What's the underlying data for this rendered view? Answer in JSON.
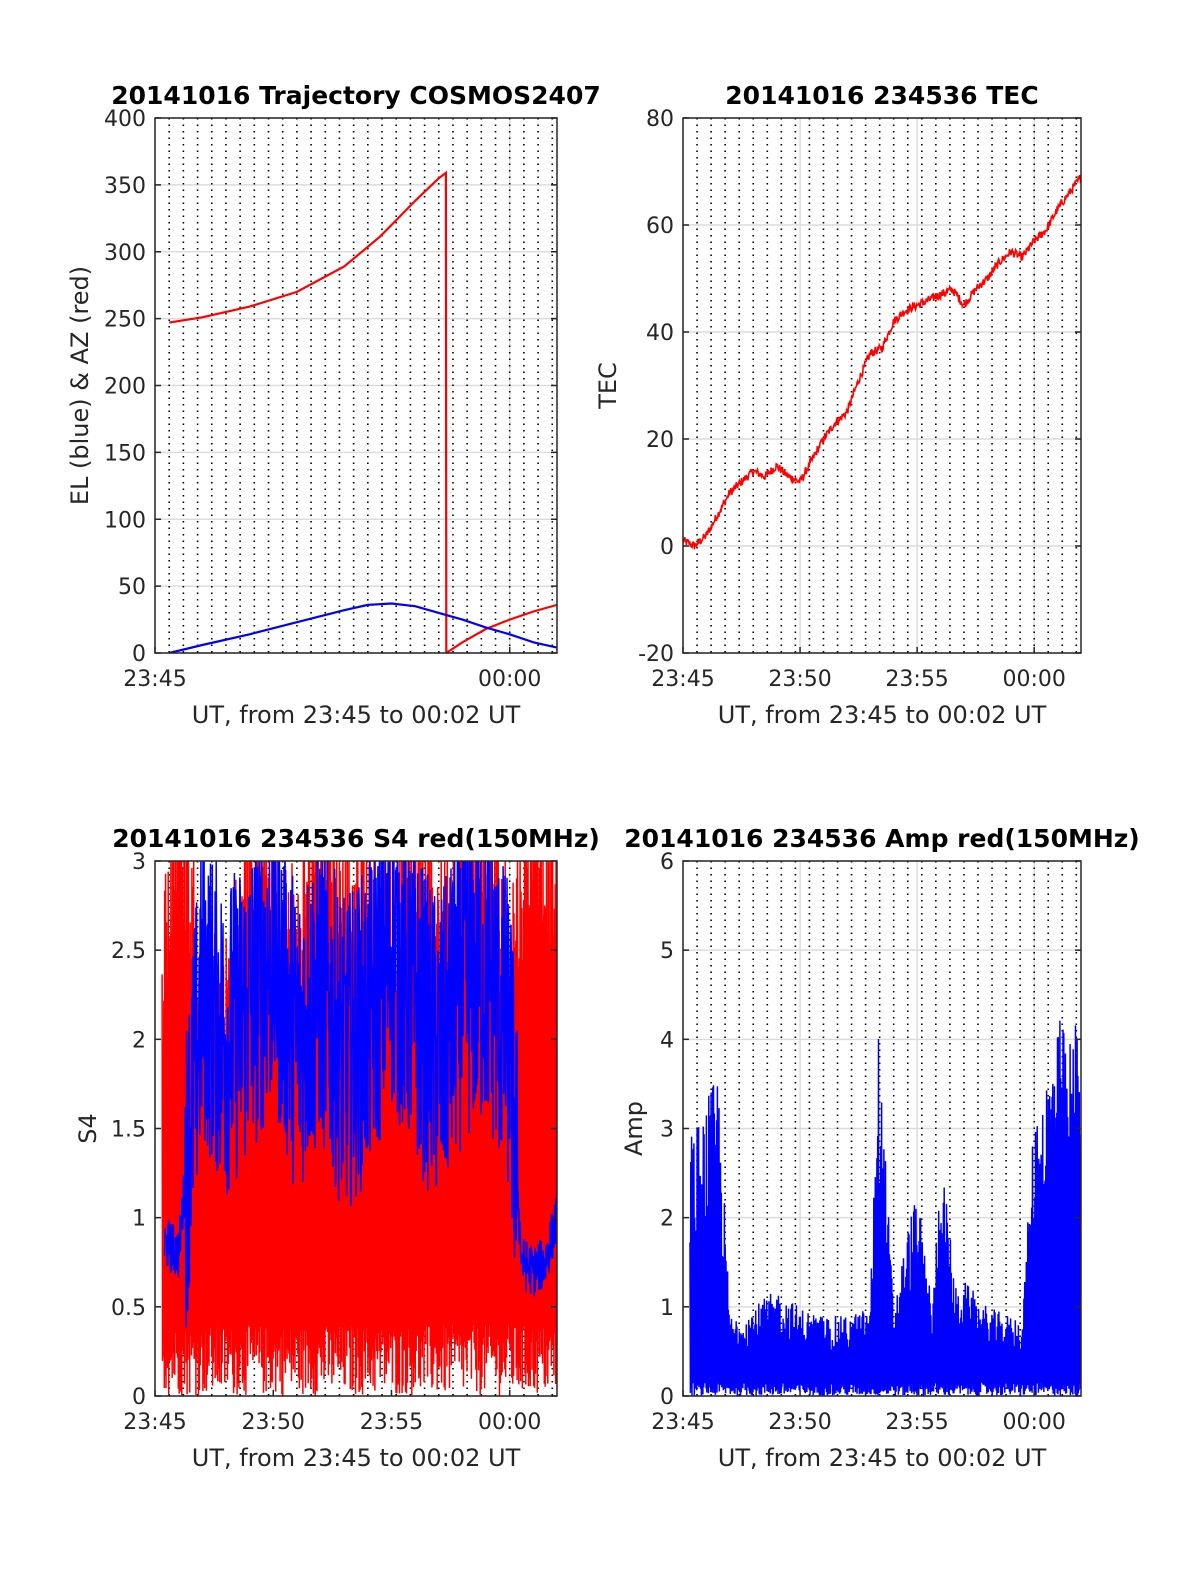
{
  "colors": {
    "az": "#ff0000",
    "el": "#0000ff",
    "tec": "#ff0000",
    "s4_red": "#ff0000",
    "s4_blue": "#0000ff",
    "amp": "#0000ff",
    "grid_solid": "#dcdcdc",
    "grid_dotted": "#000000"
  },
  "chart_data": [
    {
      "type": "line",
      "title": "20141016 Trajectory COSMOS2407",
      "xlabel": "UT, from 23:45 to 00:02 UT",
      "ylabel": "EL (blue) & AZ (red)",
      "xlim": [
        "23:45",
        "00:02"
      ],
      "xtick_labels": [
        "23:45",
        "00:00"
      ],
      "ylim": [
        0,
        400
      ],
      "yticks": [
        0,
        50,
        100,
        150,
        200,
        250,
        300,
        350,
        400
      ],
      "grid": "dotted vertical lines about every 0.6 minutes",
      "series": [
        {
          "name": "AZ",
          "x": [
            "23:45:36",
            "23:47:00",
            "23:49:00",
            "23:51:00",
            "23:53:00",
            "23:54:30",
            "23:55:00",
            "23:56:00",
            "23:57:00",
            "23:57:18",
            "23:57:19",
            "23:58:00",
            "23:59:00",
            "00:00:00",
            "00:01:00",
            "00:02:00"
          ],
          "values": [
            247,
            251,
            259,
            270,
            289,
            311,
            320,
            338,
            355,
            359,
            0,
            8,
            18,
            25,
            31,
            36
          ]
        },
        {
          "name": "EL",
          "x": [
            "23:45:36",
            "23:47:00",
            "23:49:00",
            "23:51:00",
            "23:53:00",
            "23:54:00",
            "23:55:00",
            "23:56:00",
            "23:57:00",
            "23:58:00",
            "23:59:00",
            "00:00:00",
            "00:01:00",
            "00:02:00"
          ],
          "values": [
            0,
            6,
            14,
            23,
            32,
            36,
            37,
            35,
            30,
            25,
            19,
            14,
            8,
            4
          ]
        }
      ]
    },
    {
      "type": "line",
      "title": "20141016 234536 TEC",
      "xlabel": "UT, from 23:45 to 00:02 UT",
      "ylabel": "TEC",
      "xlim": [
        "23:45",
        "00:02"
      ],
      "xtick_labels": [
        "23:45",
        "23:50",
        "23:55",
        "00:00"
      ],
      "ylim": [
        -20,
        80
      ],
      "yticks": [
        -20,
        0,
        20,
        40,
        60,
        80
      ],
      "series": [
        {
          "name": "TEC",
          "x": [
            "23:45:00",
            "23:45:30",
            "23:46:00",
            "23:46:30",
            "23:47:00",
            "23:47:30",
            "23:48:00",
            "23:48:30",
            "23:49:00",
            "23:49:30",
            "23:50:00",
            "23:50:30",
            "23:51:00",
            "23:51:30",
            "23:52:00",
            "23:52:30",
            "23:53:00",
            "23:53:30",
            "23:54:00",
            "23:54:30",
            "23:55:00",
            "23:55:30",
            "23:56:00",
            "23:56:30",
            "23:57:00",
            "23:57:30",
            "23:58:00",
            "23:58:30",
            "23:59:00",
            "23:59:30",
            "00:00:00",
            "00:00:30",
            "00:01:00",
            "00:01:30",
            "00:02:00"
          ],
          "values": [
            1,
            0,
            2,
            6,
            10,
            12,
            14,
            13,
            15,
            13,
            12,
            16,
            20,
            23,
            25,
            31,
            36,
            37,
            42,
            44,
            45,
            46,
            47,
            48,
            45,
            48,
            50,
            53,
            55,
            54,
            57,
            59,
            63,
            66,
            69
          ]
        }
      ]
    },
    {
      "type": "line",
      "title": "20141016 234536 S4 red(150MHz)",
      "xlabel": "UT, from 23:45 to 00:02 UT",
      "ylabel": "S4",
      "xlim": [
        "23:45",
        "00:02"
      ],
      "xtick_labels": [
        "23:45",
        "23:50",
        "23:55",
        "00:00"
      ],
      "ylim": [
        0,
        3
      ],
      "yticks": [
        0,
        0.5,
        1,
        1.5,
        2,
        2.5,
        3
      ],
      "series": [
        {
          "name": "red",
          "x": [
            "23:45:00",
            "23:46:00",
            "23:47:00",
            "23:48:00",
            "23:49:00",
            "23:50:00",
            "23:51:00",
            "23:52:00",
            "23:53:00",
            "23:54:00",
            "23:55:00",
            "23:56:00",
            "23:57:00",
            "23:58:00",
            "23:59:00",
            "00:00:00",
            "00:01:00",
            "00:02:00"
          ],
          "values": [
            1.5,
            2.8,
            1.8,
            1.6,
            2.5,
            2.2,
            2.0,
            2.7,
            2.3,
            2.4,
            2.1,
            2.6,
            2.2,
            2.4,
            2.6,
            2.0,
            2.8,
            2.4
          ],
          "note": "oscillates rapidly between 0 and 3"
        },
        {
          "name": "blue",
          "x": [
            "23:45:00",
            "23:45:30",
            "23:46:00",
            "23:47:00",
            "23:48:00",
            "23:49:00",
            "23:50:00",
            "23:51:00",
            "23:52:00",
            "23:53:00",
            "23:54:00",
            "23:55:00",
            "23:56:00",
            "23:57:00",
            "23:58:00",
            "23:59:00",
            "00:00:00",
            "00:00:30",
            "00:01:00",
            "00:01:30",
            "00:02:00"
          ],
          "values": [
            0.8,
            0.85,
            0.8,
            2.3,
            2.0,
            2.2,
            2.5,
            2.0,
            2.3,
            1.9,
            2.1,
            2.5,
            2.2,
            1.9,
            2.3,
            2.4,
            2.0,
            0.75,
            0.7,
            0.75,
            1.0
          ]
        }
      ]
    },
    {
      "type": "line",
      "title": "20141016 234536 Amp red(150MHz)",
      "xlabel": "UT, from 23:45 to 00:02 UT",
      "ylabel": "Amp",
      "xlim": [
        "23:45",
        "00:02"
      ],
      "xtick_labels": [
        "23:45",
        "23:50",
        "23:55",
        "00:00"
      ],
      "ylim": [
        0,
        6
      ],
      "yticks": [
        0,
        1,
        2,
        3,
        4,
        5,
        6
      ],
      "series": [
        {
          "name": "Amp",
          "x": [
            "23:45:00",
            "23:45:30",
            "23:46:00",
            "23:46:30",
            "23:47:00",
            "23:48:00",
            "23:49:00",
            "23:50:00",
            "23:51:00",
            "23:52:00",
            "23:53:00",
            "23:53:20",
            "23:54:00",
            "23:54:40",
            "23:55:00",
            "23:55:40",
            "23:56:00",
            "23:56:40",
            "23:57:00",
            "23:58:00",
            "23:59:00",
            "23:59:30",
            "00:00:00",
            "00:00:30",
            "00:01:00",
            "00:01:30",
            "00:02:00"
          ],
          "values": [
            3.3,
            3.0,
            3.3,
            3.7,
            0.9,
            1.0,
            1.2,
            1.0,
            0.9,
            0.9,
            1.0,
            4.2,
            1.0,
            2.0,
            2.3,
            1.0,
            2.8,
            1.2,
            1.3,
            1.0,
            0.9,
            0.9,
            3.2,
            3.6,
            4.3,
            4.0,
            4.6
          ],
          "note": "filled down to 0"
        }
      ]
    }
  ]
}
